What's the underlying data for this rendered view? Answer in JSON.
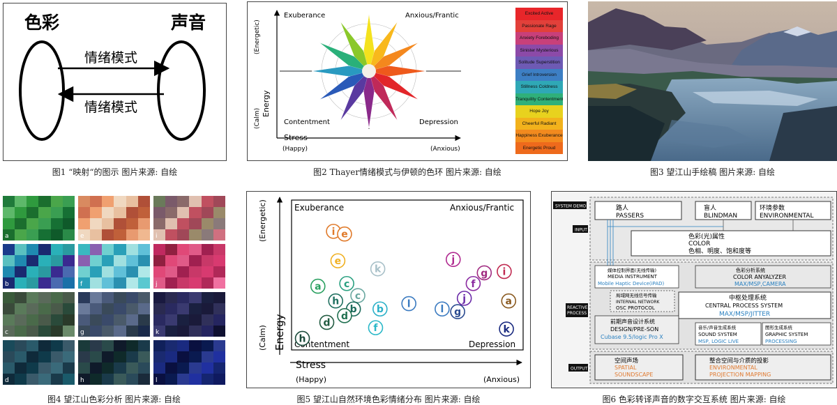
{
  "fig1": {
    "left_label": "色彩",
    "right_label": "声音",
    "arrow_top": "情绪模式",
    "arrow_bottom": "情绪模式",
    "caption": "图1 “映射“的图示  图片来源: 自绘"
  },
  "fig2": {
    "y_axis_label": "Energy",
    "y_top": "(Energetic)",
    "y_bottom": "(Calm)",
    "x_axis_label": "Stress",
    "x_left": "(Happy)",
    "x_right": "(Anxious)",
    "quadrants": {
      "tl": "Exuberance",
      "tr": "Anxious/Frantic",
      "bl": "Contentment",
      "br": "Depression"
    },
    "legend": [
      {
        "label": "Excited  Active",
        "color": "#e8262a"
      },
      {
        "label": "Passionate Rage",
        "color": "#e2403a"
      },
      {
        "label": "Anxiety Foreboding",
        "color": "#c8407a"
      },
      {
        "label": "Sinister Mysterious",
        "color": "#8c4aa8"
      },
      {
        "label": "Solitude Superstition",
        "color": "#6e5ab4"
      },
      {
        "label": "Grief Introversion",
        "color": "#3d7fc4"
      },
      {
        "label": "Stillness Coldness",
        "color": "#2fa8b6"
      },
      {
        "label": "Tranquility Contentment",
        "color": "#2fb07a"
      },
      {
        "label": "Hope Joy",
        "color": "#e8d21e"
      },
      {
        "label": "Cheerful Radiant",
        "color": "#f2b21c"
      },
      {
        "label": "Happiness Exuberance",
        "color": "#f28a1e"
      },
      {
        "label": "Energetic Proud",
        "color": "#ee6a1c"
      }
    ],
    "caption": "图2  Thayer情绪模式与伊顿的色环  图片来源: 自绘"
  },
  "fig3": {
    "caption": "图3  望江山手绘稿  图片来源: 自绘"
  },
  "fig4": {
    "tiles": [
      {
        "letter": "a",
        "colors": [
          "#1f7a3a",
          "#2f9a3e",
          "#4aa64a",
          "#167034",
          "#2a8a48",
          "#5db86a",
          "#1b6e2e",
          "#3a9e52",
          "#0f5a2a"
        ]
      },
      {
        "letter": "e",
        "colors": [
          "#d98a60",
          "#f0a070",
          "#e8c0a0",
          "#c0603a",
          "#f0b890",
          "#d07050",
          "#f0d8c0",
          "#b05038",
          "#e89a70"
        ]
      },
      {
        "letter": "i",
        "colors": [
          "#6a7a5a",
          "#8a6a6a",
          "#c05060",
          "#9a8a6a",
          "#d07080",
          "#7a5a6a",
          "#e0c0b0",
          "#a04858",
          "#8a7a7a"
        ]
      },
      {
        "letter": "b",
        "colors": [
          "#1a3a8a",
          "#1f8ab0",
          "#2ab0b8",
          "#3a2a90",
          "#1a70a8",
          "#5ac0c0",
          "#1a2a70",
          "#2a9aa0",
          "#4a6ab0"
        ]
      },
      {
        "letter": "f",
        "colors": [
          "#3ab8c0",
          "#70d0d0",
          "#a0e0e0",
          "#2a90b0",
          "#5ac8d0",
          "#8a60b0",
          "#2aa0b8",
          "#60c0d8",
          "#b0e8e8"
        ]
      },
      {
        "letter": "j",
        "colors": [
          "#c02a60",
          "#e04878",
          "#a02050",
          "#d83a70",
          "#f070a0",
          "#902040",
          "#e05a88",
          "#c83868",
          "#b02858"
        ]
      },
      {
        "letter": "c",
        "colors": [
          "#3a5a3a",
          "#5a7a5a",
          "#4a6a4a",
          "#2a4a3a",
          "#6a8a6a",
          "#3a4a3a",
          "#5a6a5a",
          "#4a5a4a",
          "#2a3a2a"
        ]
      },
      {
        "letter": "g",
        "colors": [
          "#2a3a5a",
          "#4a5a7a",
          "#3a4a6a",
          "#5a6a8a",
          "#1a2a4a",
          "#6a7a9a",
          "#3a4a5a",
          "#4a5a6a",
          "#2a3a4a"
        ]
      },
      {
        "letter": "k",
        "colors": [
          "#1a1a40",
          "#2a2a60",
          "#1a2040",
          "#30305a",
          "#0f1030",
          "#2a2a50",
          "#3a3a70",
          "#1a1a3a",
          "#252560"
        ]
      },
      {
        "letter": "d",
        "colors": [
          "#1a4a5a",
          "#2a5a6a",
          "#0f3a4a",
          "#3a6a7a",
          "#1a5a6a",
          "#2a4a5a",
          "#0f2a3a",
          "#3a5a6a",
          "#1a3a4a"
        ]
      },
      {
        "letter": "h",
        "colors": [
          "#1a3a3a",
          "#2a4a4a",
          "#0f2a2a",
          "#3a5a5a",
          "#1a2a3a",
          "#2a3a4a",
          "#0f1a2a",
          "#1a3a4a",
          "#2a4a5a"
        ]
      },
      {
        "letter": "l",
        "colors": [
          "#10205a",
          "#1a2a80",
          "#0a1a50",
          "#2030a0",
          "#0f1a60",
          "#1a2a70",
          "#0a1040",
          "#2a3a90",
          "#152570"
        ]
      }
    ],
    "caption": "图4  望江山色彩分析  图片来源: 自绘"
  },
  "fig5": {
    "y_axis_label": "Energy",
    "y_top": "(Energetic)",
    "y_bottom": "(Calm)",
    "x_axis_label": "Stress",
    "x_left": "(Happy)",
    "x_right": "(Anxious)",
    "quadrants": {
      "tl": "Exuberance",
      "tr": "Anxious/Frantic",
      "bl": "Contentment",
      "br": "Depression"
    },
    "points": [
      {
        "label": "i",
        "color": "#e07a2a",
        "x": 0.17,
        "y": 0.86
      },
      {
        "label": "e",
        "color": "#e07a2a",
        "x": 0.22,
        "y": 0.84
      },
      {
        "label": "e",
        "color": "#f0b020",
        "x": 0.19,
        "y": 0.64
      },
      {
        "label": "k",
        "color": "#a8c0c8",
        "x": 0.37,
        "y": 0.58
      },
      {
        "label": "a",
        "color": "#2aa060",
        "x": 0.1,
        "y": 0.45
      },
      {
        "label": "c",
        "color": "#2aa080",
        "x": 0.23,
        "y": 0.47
      },
      {
        "label": "c",
        "color": "#6aa8a0",
        "x": 0.28,
        "y": 0.38
      },
      {
        "label": "h",
        "color": "#207060",
        "x": 0.18,
        "y": 0.34
      },
      {
        "label": "b",
        "color": "#1a6a5a",
        "x": 0.26,
        "y": 0.28
      },
      {
        "label": "d",
        "color": "#207050",
        "x": 0.22,
        "y": 0.23
      },
      {
        "label": "d",
        "color": "#205a40",
        "x": 0.14,
        "y": 0.18
      },
      {
        "label": "b",
        "color": "#2ab0c8",
        "x": 0.38,
        "y": 0.28
      },
      {
        "label": "f",
        "color": "#2ab8c8",
        "x": 0.36,
        "y": 0.14
      },
      {
        "label": "l",
        "color": "#3a7ac0",
        "x": 0.51,
        "y": 0.32
      },
      {
        "label": "l",
        "color": "#3a7ac0",
        "x": 0.66,
        "y": 0.28
      },
      {
        "label": "g",
        "color": "#2a4a90",
        "x": 0.73,
        "y": 0.26
      },
      {
        "label": "j",
        "color": "#b02a90",
        "x": 0.71,
        "y": 0.65
      },
      {
        "label": "g",
        "color": "#a02a80",
        "x": 0.85,
        "y": 0.55
      },
      {
        "label": "i",
        "color": "#c02a50",
        "x": 0.94,
        "y": 0.56
      },
      {
        "label": "f",
        "color": "#8a2aa0",
        "x": 0.8,
        "y": 0.47
      },
      {
        "label": "j",
        "color": "#6a2aa8",
        "x": 0.76,
        "y": 0.36
      },
      {
        "label": "a",
        "color": "#8a5a20",
        "x": 0.96,
        "y": 0.34
      },
      {
        "label": "k",
        "color": "#1a2a80",
        "x": 0.95,
        "y": 0.13
      },
      {
        "label": "h",
        "color": "#1a4a3a",
        "x": 0.03,
        "y": 0.06
      }
    ],
    "caption": "图5  望江山自然环境色彩情绪分布  图片来源: 自绘"
  },
  "fig6": {
    "system_demo": "SYSTEM DEMO",
    "input": "INPUT",
    "reactive": [
      "REACTIVE",
      "PROCESS"
    ],
    "output": "OUTPUT",
    "passers": [
      "路人",
      "PASSERS"
    ],
    "blindman": [
      "盲人",
      "BLINDMAN"
    ],
    "environmental": [
      "环境参数",
      "ENVIRONMENTAL"
    ],
    "color": [
      "色彩(光)属性",
      "COLOR",
      "色相、明度、饱和度等"
    ],
    "media": [
      "媒体控制界面(无线传输)",
      "MEDIA INSTRUMENT",
      "Mobile Haptic Device(iPAD)"
    ],
    "analyzer": [
      "色彩分析系统",
      "COLOR ANYALYZER",
      "MAX/MSP,CAMERA"
    ],
    "network": [
      "局域网无线信号传输",
      "INTERNAL NETWORK",
      "OSC PROTOCOL"
    ],
    "central": [
      "中枢处理系统",
      "CENTRAL PROCESS SYSTEM",
      "MAX/MSP/JITTER"
    ],
    "design": [
      "前期声音设计系统",
      "DESIGN/PRE-SON",
      "Cubase 9.5/logic Pro X"
    ],
    "sound": [
      "音乐/声音生成系统",
      "SOUND SYSTEM",
      "MSP, LOGIC LIVE"
    ],
    "graphic": [
      "图形生成系统",
      "GRAPHIC SYSTEM",
      "PROCESSING"
    ],
    "spatial": [
      "空间声场",
      "SPATIAL",
      "SOUNDSCAPE"
    ],
    "projection": [
      "整合空间与介质的投影",
      "ENVIRONMENTAL",
      "PROJECTION MAPPING"
    ],
    "accent": "#e07a30",
    "blue": "#2a80c0",
    "caption": "图6  色彩转译声音的数字交互系统  图片来源: 自绘"
  }
}
